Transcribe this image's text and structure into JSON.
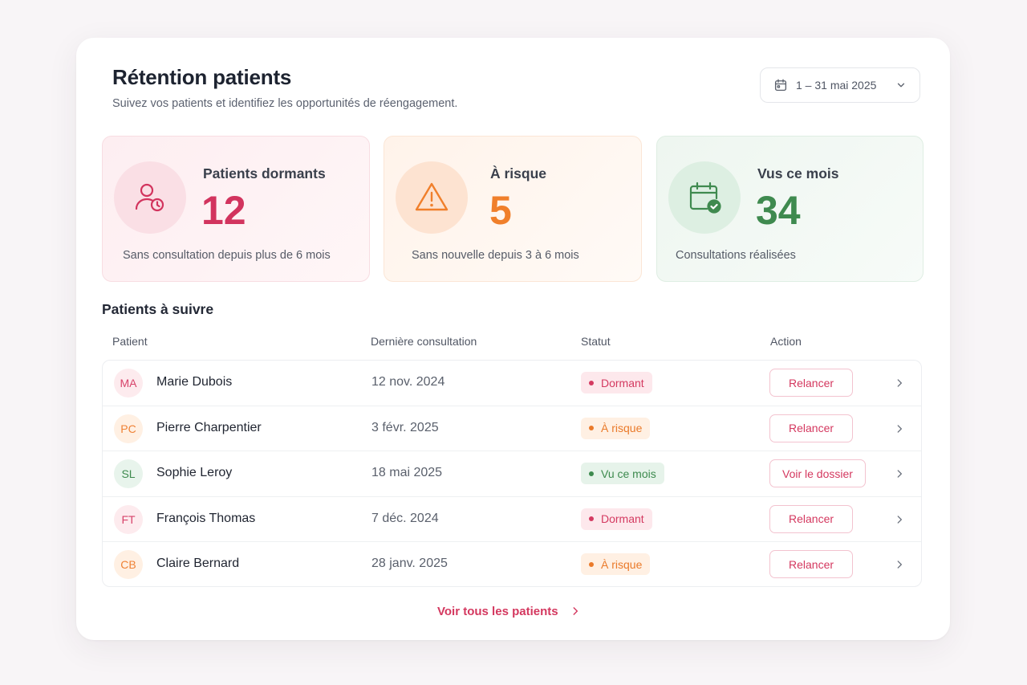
{
  "header": {
    "title": "Rétention patients",
    "subtitle": "Suivez vos patients et identifiez les opportunités de réengagement.",
    "date_range": "1 – 31 mai 2025"
  },
  "stats": [
    {
      "label": "Patients dormants",
      "value": "12",
      "description": "Sans consultation depuis plus de 6 mois",
      "icon": "user-clock-icon",
      "color": "#d2345e"
    },
    {
      "label": "À risque",
      "value": "5",
      "description": "Sans nouvelle depuis 3 à 6 mois",
      "icon": "warning-triangle-icon",
      "color": "#f07f2b"
    },
    {
      "label": "Vus ce mois",
      "value": "34",
      "description": "Consultations réalisées",
      "icon": "calendar-check-icon",
      "color": "#3f8a4f"
    }
  ],
  "section_title": "Patients à suivre",
  "table": {
    "columns": [
      "Patient",
      "Dernière consultation",
      "Statut",
      "Action"
    ],
    "rows": [
      {
        "initials": "MA",
        "name": "Marie Dubois",
        "last": "12 nov. 2024",
        "status": "Dormant",
        "action": "Relancer"
      },
      {
        "initials": "PC",
        "name": "Pierre Charpentier",
        "last": "3 févr. 2025",
        "status": "À risque",
        "action": "Relancer"
      },
      {
        "initials": "SL",
        "name": "Sophie Leroy",
        "last": "18 mai 2025",
        "status": "Vu ce mois",
        "action": "Voir le dossier"
      },
      {
        "initials": "FT",
        "name": "François Thomas",
        "last": "7 déc. 2024",
        "status": "Dormant",
        "action": "Relancer"
      },
      {
        "initials": "CB",
        "name": "Claire Bernard",
        "last": "28 janv. 2025",
        "status": "À risque",
        "action": "Relancer"
      }
    ]
  },
  "footer_link": "Voir tous les patients",
  "colors": {
    "accent": "#d4385f",
    "warning": "#ea7a2a",
    "success": "#3d8a4e"
  }
}
